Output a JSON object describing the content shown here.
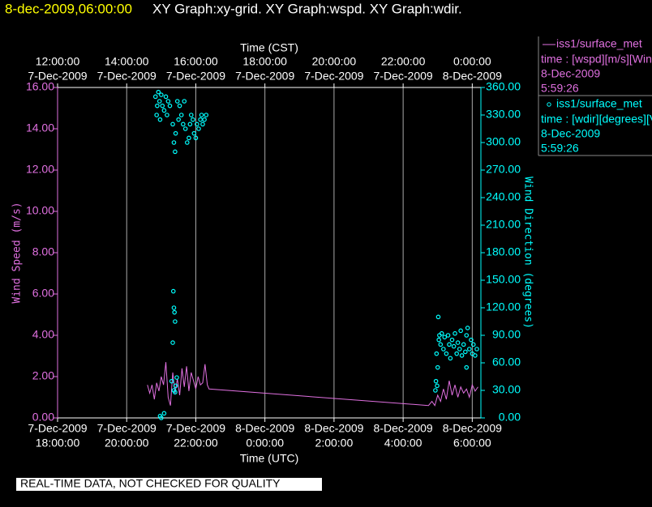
{
  "chart_data": {
    "type": "line",
    "header_time": "8-dec-2009,06:00:00",
    "title": "XY Graph:xy-grid.  XY Graph:wspd.  XY Graph:wdir.",
    "xlabel": "Time (UTC)",
    "x2label": "Time (CST)",
    "ylabel": "Wind Speed (m/s)",
    "y2label": "Wind Direction (degrees)",
    "footer": "REAL-TIME DATA, NOT CHECKED FOR QUALITY",
    "grid": true,
    "xlim": [
      "2009-12-07 18:00",
      "2009-12-08 06:15"
    ],
    "xticks": [
      {
        "value": "2009-12-07 18:00",
        "label": [
          "7-Dec-2009",
          "18:00:00"
        ]
      },
      {
        "value": "2009-12-07 20:00",
        "label": [
          "7-Dec-2009",
          "20:00:00"
        ]
      },
      {
        "value": "2009-12-07 22:00",
        "label": [
          "7-Dec-2009",
          "22:00:00"
        ]
      },
      {
        "value": "2009-12-08 00:00",
        "label": [
          "8-Dec-2009",
          "0:00:00"
        ]
      },
      {
        "value": "2009-12-08 02:00",
        "label": [
          "8-Dec-2009",
          "2:00:00"
        ]
      },
      {
        "value": "2009-12-08 04:00",
        "label": [
          "8-Dec-2009",
          "4:00:00"
        ]
      },
      {
        "value": "2009-12-08 06:00",
        "label": [
          "8-Dec-2009",
          "6:00:00"
        ]
      }
    ],
    "x2ticks": [
      {
        "value": "2009-12-07 18:00",
        "label": [
          "12:00:00",
          "7-Dec-2009"
        ]
      },
      {
        "value": "2009-12-07 20:00",
        "label": [
          "14:00:00",
          "7-Dec-2009"
        ]
      },
      {
        "value": "2009-12-07 22:00",
        "label": [
          "16:00:00",
          "7-Dec-2009"
        ]
      },
      {
        "value": "2009-12-08 00:00",
        "label": [
          "18:00:00",
          "7-Dec-2009"
        ]
      },
      {
        "value": "2009-12-08 02:00",
        "label": [
          "20:00:00",
          "7-Dec-2009"
        ]
      },
      {
        "value": "2009-12-08 04:00",
        "label": [
          "22:00:00",
          "7-Dec-2009"
        ]
      },
      {
        "value": "2009-12-08 06:00",
        "label": [
          "0:00:00",
          "8-Dec-2009"
        ]
      }
    ],
    "ylim": [
      0,
      16
    ],
    "yticks": [
      {
        "value": 0,
        "label": "0.00"
      },
      {
        "value": 2,
        "label": "2.00"
      },
      {
        "value": 4,
        "label": "4.00"
      },
      {
        "value": 6,
        "label": "6.00"
      },
      {
        "value": 8,
        "label": "8.00"
      },
      {
        "value": 10,
        "label": "10.00"
      },
      {
        "value": 12,
        "label": "12.00"
      },
      {
        "value": 14,
        "label": "14.00"
      },
      {
        "value": 16,
        "label": "16.00"
      }
    ],
    "y2lim": [
      0,
      360
    ],
    "y2ticks": [
      {
        "value": 0,
        "label": "0.00"
      },
      {
        "value": 30,
        "label": "30.00"
      },
      {
        "value": 60,
        "label": "60.00"
      },
      {
        "value": 90,
        "label": "90.00"
      },
      {
        "value": 120,
        "label": "120.00"
      },
      {
        "value": 150,
        "label": "150.00"
      },
      {
        "value": 180,
        "label": "180.00"
      },
      {
        "value": 210,
        "label": "210.00"
      },
      {
        "value": 240,
        "label": "240.00"
      },
      {
        "value": 270,
        "label": "270.00"
      },
      {
        "value": 300,
        "label": "300.00"
      },
      {
        "value": 330,
        "label": "330.00"
      },
      {
        "value": 360,
        "label": "360.00"
      }
    ],
    "series": [
      {
        "name": "iss1/surface_met",
        "type": "line",
        "color": "#e070e0",
        "legend_text": [
          "time : [wspd][m/s][Wind",
          "8-Dec-2009",
          "5:59:26"
        ],
        "x": [
          "2009-12-07 20:36",
          "2009-12-07 20:40",
          "2009-12-07 20:44",
          "2009-12-07 20:48",
          "2009-12-07 20:52",
          "2009-12-07 20:56",
          "2009-12-07 21:00",
          "2009-12-07 21:04",
          "2009-12-07 21:08",
          "2009-12-07 21:12",
          "2009-12-07 21:16",
          "2009-12-07 21:20",
          "2009-12-07 21:24",
          "2009-12-07 21:28",
          "2009-12-07 21:32",
          "2009-12-07 21:36",
          "2009-12-07 21:40",
          "2009-12-07 21:44",
          "2009-12-07 21:48",
          "2009-12-07 21:52",
          "2009-12-07 21:56",
          "2009-12-07 22:00",
          "2009-12-07 22:04",
          "2009-12-07 22:08",
          "2009-12-07 22:12",
          "2009-12-07 22:16",
          "2009-12-07 22:20",
          "2009-12-07 22:23",
          "2009-12-08 04:44",
          "2009-12-08 04:50",
          "2009-12-08 04:55",
          "2009-12-08 05:00",
          "2009-12-08 05:05",
          "2009-12-08 05:10",
          "2009-12-08 05:15",
          "2009-12-08 05:20",
          "2009-12-08 05:25",
          "2009-12-08 05:30",
          "2009-12-08 05:35",
          "2009-12-08 05:40",
          "2009-12-08 05:45",
          "2009-12-08 05:50",
          "2009-12-08 05:55",
          "2009-12-08 06:00",
          "2009-12-08 06:05",
          "2009-12-08 06:10"
        ],
        "values": [
          1.6,
          1.2,
          1.6,
          0.9,
          1.7,
          1.3,
          2.0,
          1.6,
          2.7,
          1.0,
          0.6,
          2.2,
          1.2,
          1.9,
          1.1,
          2.4,
          1.5,
          2.5,
          1.3,
          2.2,
          1.8,
          1.4,
          2.0,
          1.6,
          1.7,
          2.6,
          1.6,
          1.4,
          0.6,
          0.8,
          0.6,
          1.1,
          0.8,
          1.4,
          0.9,
          1.8,
          1.1,
          1.6,
          1.0,
          1.5,
          1.2,
          1.4,
          1.0,
          1.6,
          1.3,
          1.5
        ]
      },
      {
        "name": "iss1/surface_met",
        "type": "scatter",
        "axis": "y2",
        "color": "#00ffff",
        "legend_text": [
          "time : [wdir][degrees][V",
          "8-Dec-2009",
          "5:59:26"
        ],
        "x": [
          "2009-12-07 20:50",
          "2009-12-07 20:52",
          "2009-12-07 20:53",
          "2009-12-07 20:55",
          "2009-12-07 20:57",
          "2009-12-07 20:58",
          "2009-12-07 21:00",
          "2009-12-07 21:02",
          "2009-12-07 21:05",
          "2009-12-07 21:08",
          "2009-12-07 21:10",
          "2009-12-07 21:12",
          "2009-12-07 21:15",
          "2009-12-07 21:20",
          "2009-12-07 21:22",
          "2009-12-07 21:24",
          "2009-12-07 21:25",
          "2009-12-07 21:28",
          "2009-12-07 21:30",
          "2009-12-07 21:32",
          "2009-12-07 21:35",
          "2009-12-07 21:38",
          "2009-12-07 21:40",
          "2009-12-07 21:42",
          "2009-12-07 21:45",
          "2009-12-07 21:48",
          "2009-12-07 21:50",
          "2009-12-07 21:52",
          "2009-12-07 21:55",
          "2009-12-07 21:57",
          "2009-12-07 22:00",
          "2009-12-07 22:02",
          "2009-12-07 22:05",
          "2009-12-07 22:08",
          "2009-12-07 22:10",
          "2009-12-07 22:12",
          "2009-12-07 22:15",
          "2009-12-07 22:18",
          "2009-12-07 20:58",
          "2009-12-07 21:00",
          "2009-12-07 21:05",
          "2009-12-07 21:22",
          "2009-12-07 21:24",
          "2009-12-07 21:25",
          "2009-12-07 21:20",
          "2009-12-07 21:22",
          "2009-12-07 21:23",
          "2009-12-07 21:24",
          "2009-12-07 21:21",
          "2009-12-07 21:18",
          "2009-12-07 21:27",
          "2009-12-08 04:58",
          "2009-12-08 05:00",
          "2009-12-08 05:01",
          "2009-12-08 05:02",
          "2009-12-08 05:03",
          "2009-12-08 05:05",
          "2009-12-08 05:07",
          "2009-12-08 05:10",
          "2009-12-08 05:12",
          "2009-12-08 05:15",
          "2009-12-08 05:18",
          "2009-12-08 05:20",
          "2009-12-08 05:22",
          "2009-12-08 05:25",
          "2009-12-08 05:28",
          "2009-12-08 05:30",
          "2009-12-08 05:33",
          "2009-12-08 05:35",
          "2009-12-08 05:38",
          "2009-12-08 05:40",
          "2009-12-08 05:42",
          "2009-12-08 05:45",
          "2009-12-08 05:48",
          "2009-12-08 05:50",
          "2009-12-08 05:52",
          "2009-12-08 05:55",
          "2009-12-08 05:58",
          "2009-12-08 06:00",
          "2009-12-08 06:02",
          "2009-12-08 06:05",
          "2009-12-08 06:08",
          "2009-12-08 04:57",
          "2009-12-08 04:56",
          "2009-12-08 04:59",
          "2009-12-08 05:50"
        ],
        "values": [
          350,
          330,
          340,
          355,
          345,
          325,
          352,
          340,
          335,
          350,
          330,
          345,
          340,
          320,
          300,
          290,
          310,
          345,
          325,
          340,
          330,
          320,
          345,
          315,
          300,
          305,
          320,
          330,
          325,
          310,
          305,
          320,
          315,
          325,
          330,
          320,
          325,
          330,
          2,
          0,
          5,
          30,
          28,
          35,
          82,
          120,
          115,
          105,
          138,
          40,
          44,
          70,
          55,
          110,
          85,
          90,
          80,
          92,
          75,
          88,
          70,
          90,
          80,
          65,
          85,
          78,
          92,
          70,
          82,
          75,
          95,
          68,
          80,
          72,
          90,
          98,
          75,
          85,
          70,
          80,
          68,
          75,
          40,
          30,
          35,
          55
        ]
      }
    ]
  }
}
